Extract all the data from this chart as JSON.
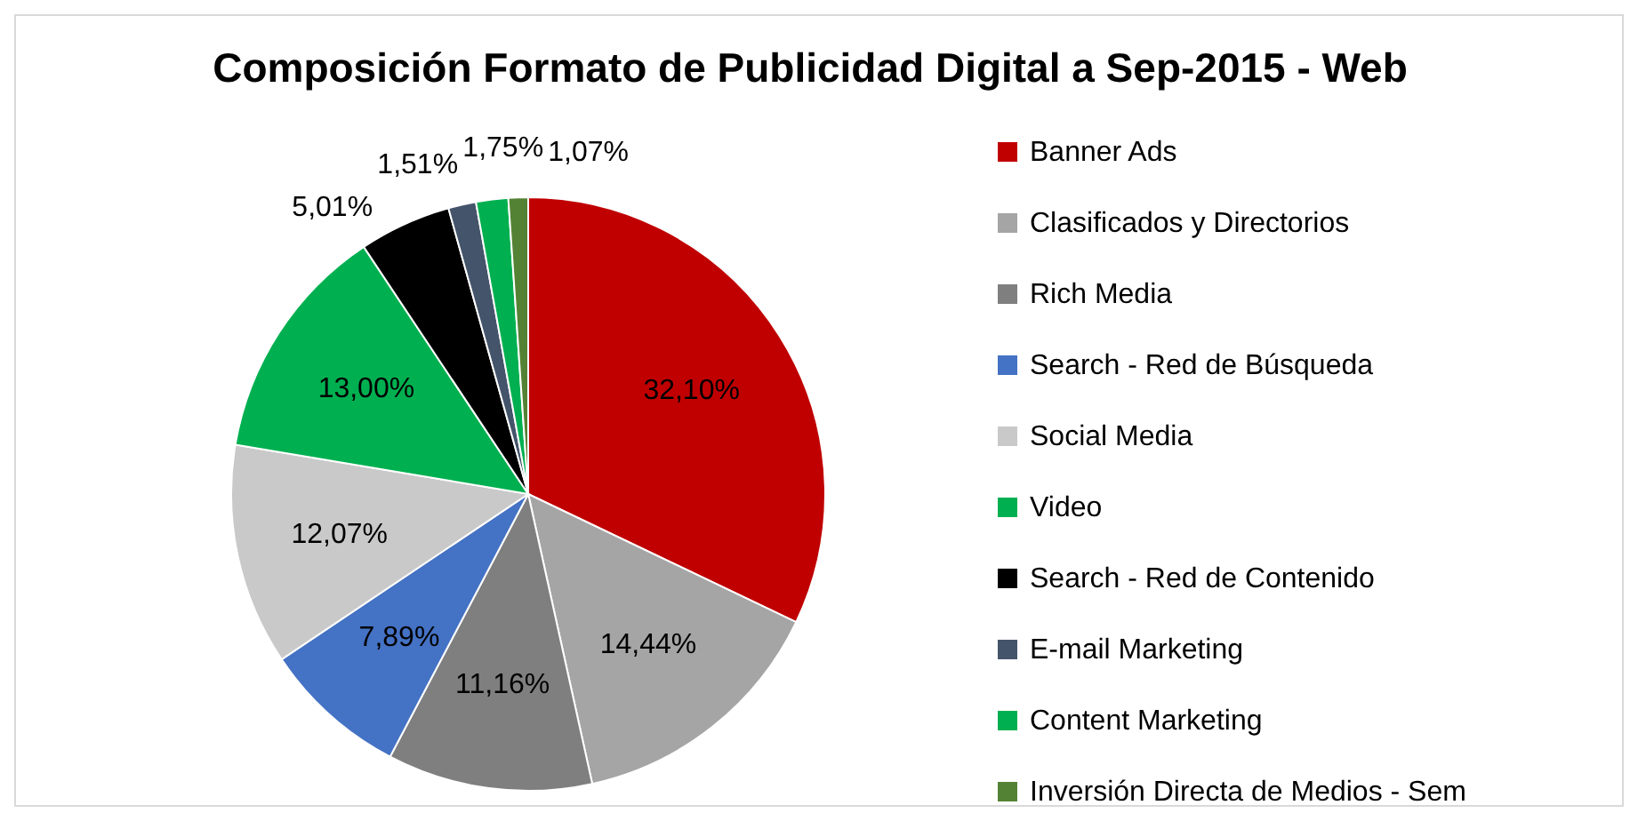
{
  "chart_data": {
    "type": "pie",
    "title": "Composición Formato de Publicidad Digital a Sep-2015 - Web",
    "categories": [
      "Banner Ads",
      "Clasificados y Directorios",
      "Rich Media",
      "Search - Red de Búsqueda",
      "Social Media",
      "Video",
      "Search - Red de Contenido",
      "E-mail Marketing",
      "Content Marketing",
      "Inversión Directa de Medios - Sem"
    ],
    "values": [
      32.1,
      14.44,
      11.16,
      7.89,
      12.07,
      13.0,
      5.01,
      1.51,
      1.75,
      1.07
    ],
    "value_labels": [
      "32,10%",
      "14,44%",
      "11,16%",
      "7,89%",
      "12,07%",
      "13,00%",
      "5,01%",
      "1,51%",
      "1,75%",
      "1,07%"
    ],
    "colors": [
      "#c00000",
      "#a5a5a5",
      "#7f7f7f",
      "#4472c4",
      "#c9c9c9",
      "#00b050",
      "#000000",
      "#44546a",
      "#00b050",
      "#548235"
    ],
    "legend": "right"
  }
}
